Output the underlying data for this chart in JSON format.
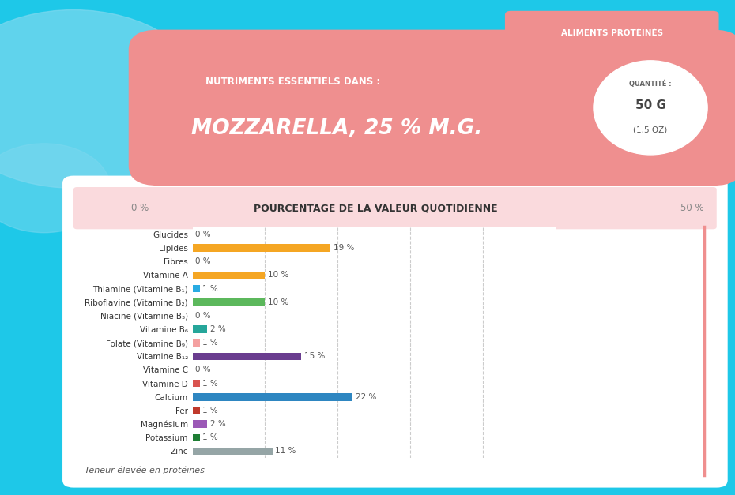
{
  "title_sub": "NUTRIMENTS ESSENTIELS DANS :",
  "title_main": "MOZZARELLA, 25 % M.G.",
  "quantity_label": "QUANTITÉ :",
  "quantity_value": "50 G\n(1,5 OZ)",
  "tag_label": "ALIMENTS PROTÉINÉS",
  "axis_label": "POURCENTAGE DE LA VALEUR QUOTIDIENNE",
  "x_left_label": "0 %",
  "x_right_label": "50 %",
  "footnote": "Teneur élevée en protéines",
  "categories": [
    "Glucides",
    "Lipides",
    "Fibres",
    "Vitamine A",
    "Thiamine (Vitamine B₁)",
    "Riboflavine (Vitamine B₂)",
    "Niacine (Vitamine B₃)",
    "Vitamine B₆",
    "Folate (Vitamine B₉)",
    "Vitamine B₁₂",
    "Vitamine C",
    "Vitamine D",
    "Calcium",
    "Fer",
    "Magnésium",
    "Potassium",
    "Zinc"
  ],
  "values": [
    0,
    19,
    0,
    10,
    1,
    10,
    0,
    2,
    1,
    15,
    0,
    1,
    22,
    1,
    2,
    1,
    11
  ],
  "bar_colors": [
    "#e8e8e8",
    "#f5a623",
    "#e8e8e8",
    "#f5a623",
    "#29abe2",
    "#5cb85c",
    "#e8e8e8",
    "#26a69a",
    "#f4a0a0",
    "#6a3d8f",
    "#e8e8e8",
    "#d9534f",
    "#2e86c1",
    "#c0392b",
    "#9b59b6",
    "#1e7e34",
    "#95a5a6"
  ],
  "bg_outer": "#1ec8e8",
  "bg_chart": "#ffffff",
  "header_bg": "#ef8f8f",
  "tag_bg": "#ef8f8f",
  "xlim": [
    0,
    50
  ],
  "fig_width": 9.3,
  "fig_height": 6.27,
  "dpi": 100
}
